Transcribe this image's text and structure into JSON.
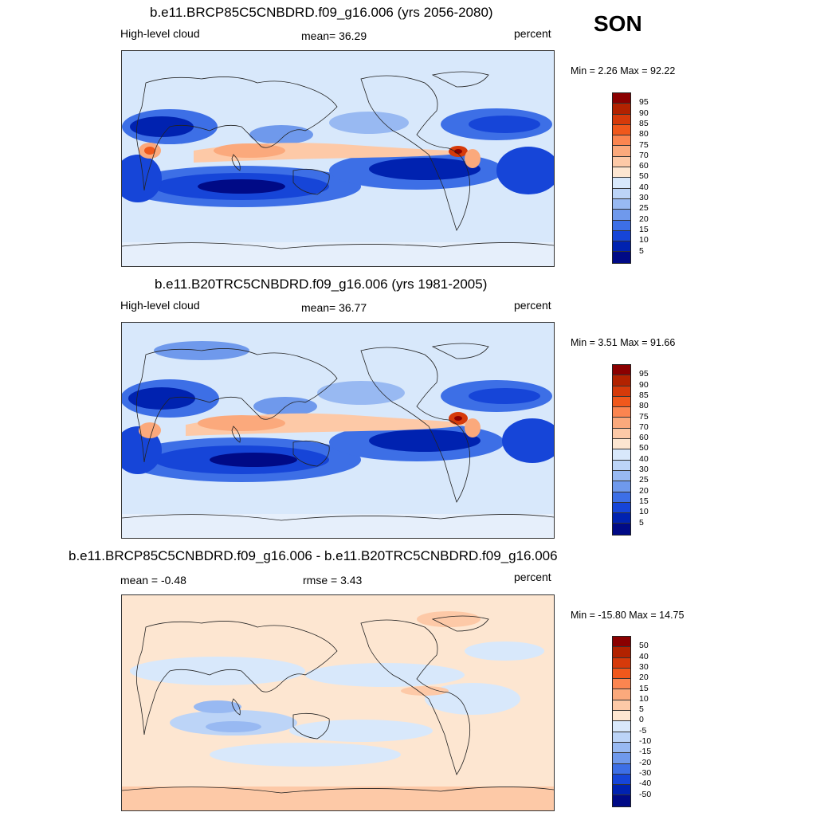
{
  "season": "SON",
  "panels": [
    {
      "title": "b.e11.BRCP85C5CNBDRD.f09_g16.006 (yrs 2056-2080)",
      "left_label": "High-level cloud",
      "center_label": "mean=  36.29",
      "units": "percent",
      "minmax": "Min =   2.26 Max =  92.22"
    },
    {
      "title": "b.e11.B20TRC5CNBDRD.f09_g16.006 (yrs 1981-2005)",
      "left_label": "High-level cloud",
      "center_label": "mean=  36.77",
      "units": "percent",
      "minmax": "Min =   3.51 Max =  91.66"
    },
    {
      "title": "b.e11.BRCP85C5CNBDRD.f09_g16.006 - b.e11.B20TRC5CNBDRD.f09_g16.006",
      "left_label": "mean =  -0.48",
      "center_label": "rmse =    3.43",
      "units": "percent",
      "minmax": "Min = -15.80 Max =  14.75"
    }
  ],
  "colorbar_abs": {
    "labels": [
      "95",
      "90",
      "85",
      "80",
      "75",
      "70",
      "60",
      "50",
      "40",
      "30",
      "25",
      "20",
      "15",
      "10",
      "5"
    ],
    "colors": [
      "#8b0000",
      "#b22200",
      "#d63a0a",
      "#f0581c",
      "#fb8550",
      "#fba97c",
      "#fdc9a7",
      "#fde6d1",
      "#d8e8fb",
      "#bcd4f7",
      "#98b9f2",
      "#6f99ec",
      "#3d6fe6",
      "#1645d8",
      "#0022b0",
      "#000a86"
    ]
  },
  "colorbar_diff": {
    "labels": [
      "50",
      "40",
      "30",
      "20",
      "15",
      "10",
      "5",
      "0",
      "-5",
      "-10",
      "-15",
      "-20",
      "-30",
      "-40",
      "-50"
    ],
    "colors": [
      "#8b0000",
      "#b22200",
      "#d63a0a",
      "#f0581c",
      "#fb8550",
      "#fba97c",
      "#fdc9a7",
      "#fde6d1",
      "#d8e8fb",
      "#bcd4f7",
      "#98b9f2",
      "#6f99ec",
      "#3d6fe6",
      "#1645d8",
      "#0022b0",
      "#000a86"
    ]
  }
}
